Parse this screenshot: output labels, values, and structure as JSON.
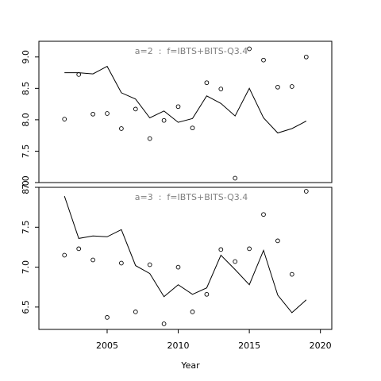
{
  "chart_data": [
    {
      "type": "line",
      "annotation": "a=2  :  f=IBTS+BITS-Q3.4",
      "xlabel": "",
      "ylabel": "",
      "ylim": [
        7.0,
        9.25
      ],
      "yticks": [
        "7.0",
        "7.5",
        "8.0",
        "8.5",
        "9.0"
      ],
      "ytick_values": [
        7.0,
        7.5,
        8.0,
        8.5,
        9.0
      ],
      "x": [
        2002,
        2003,
        2004,
        2005,
        2006,
        2007,
        2008,
        2009,
        2010,
        2011,
        2012,
        2013,
        2014,
        2015,
        2016,
        2017,
        2018,
        2019
      ],
      "series": [
        {
          "style": "line",
          "values": [
            8.75,
            8.75,
            8.73,
            8.85,
            8.43,
            8.33,
            8.03,
            8.14,
            7.96,
            8.02,
            8.38,
            8.26,
            8.06,
            8.5,
            8.03,
            7.79,
            7.86,
            7.98
          ]
        },
        {
          "style": "points",
          "values": [
            8.01,
            8.72,
            8.09,
            8.1,
            7.86,
            8.17,
            7.7,
            7.99,
            8.21,
            7.87,
            8.59,
            8.49,
            7.07,
            9.13,
            8.95,
            8.52,
            8.53,
            9.0
          ]
        }
      ]
    },
    {
      "type": "line",
      "annotation": "a=3  :  f=IBTS+BITS-Q3.4",
      "xlabel": "Year",
      "ylabel": "",
      "xlim": [
        2000.2,
        2020.8
      ],
      "xticks": [
        "2005",
        "2010",
        "2015",
        "2020"
      ],
      "xtick_values": [
        2005,
        2010,
        2015,
        2020
      ],
      "ylim": [
        6.22,
        8.0
      ],
      "yticks": [
        "6.5",
        "7.0",
        "7.5",
        "8.0"
      ],
      "ytick_values": [
        6.5,
        7.0,
        7.5,
        8.0
      ],
      "x": [
        2002,
        2003,
        2004,
        2005,
        2006,
        2007,
        2008,
        2009,
        2010,
        2011,
        2012,
        2013,
        2014,
        2015,
        2016,
        2017,
        2018,
        2019
      ],
      "series": [
        {
          "style": "line",
          "values": [
            7.89,
            7.36,
            7.39,
            7.38,
            7.47,
            7.02,
            6.92,
            6.63,
            6.78,
            6.66,
            6.74,
            7.15,
            6.97,
            6.78,
            7.21,
            6.65,
            6.43,
            6.59
          ]
        },
        {
          "style": "points",
          "values": [
            7.15,
            7.23,
            7.09,
            6.37,
            7.05,
            6.44,
            7.03,
            6.29,
            7.0,
            6.44,
            6.66,
            7.22,
            7.07,
            7.23,
            7.66,
            7.33,
            6.91,
            7.95
          ]
        }
      ]
    }
  ],
  "colors": {
    "line": "#000000",
    "annotation": "#808080",
    "axis": "#000000"
  }
}
